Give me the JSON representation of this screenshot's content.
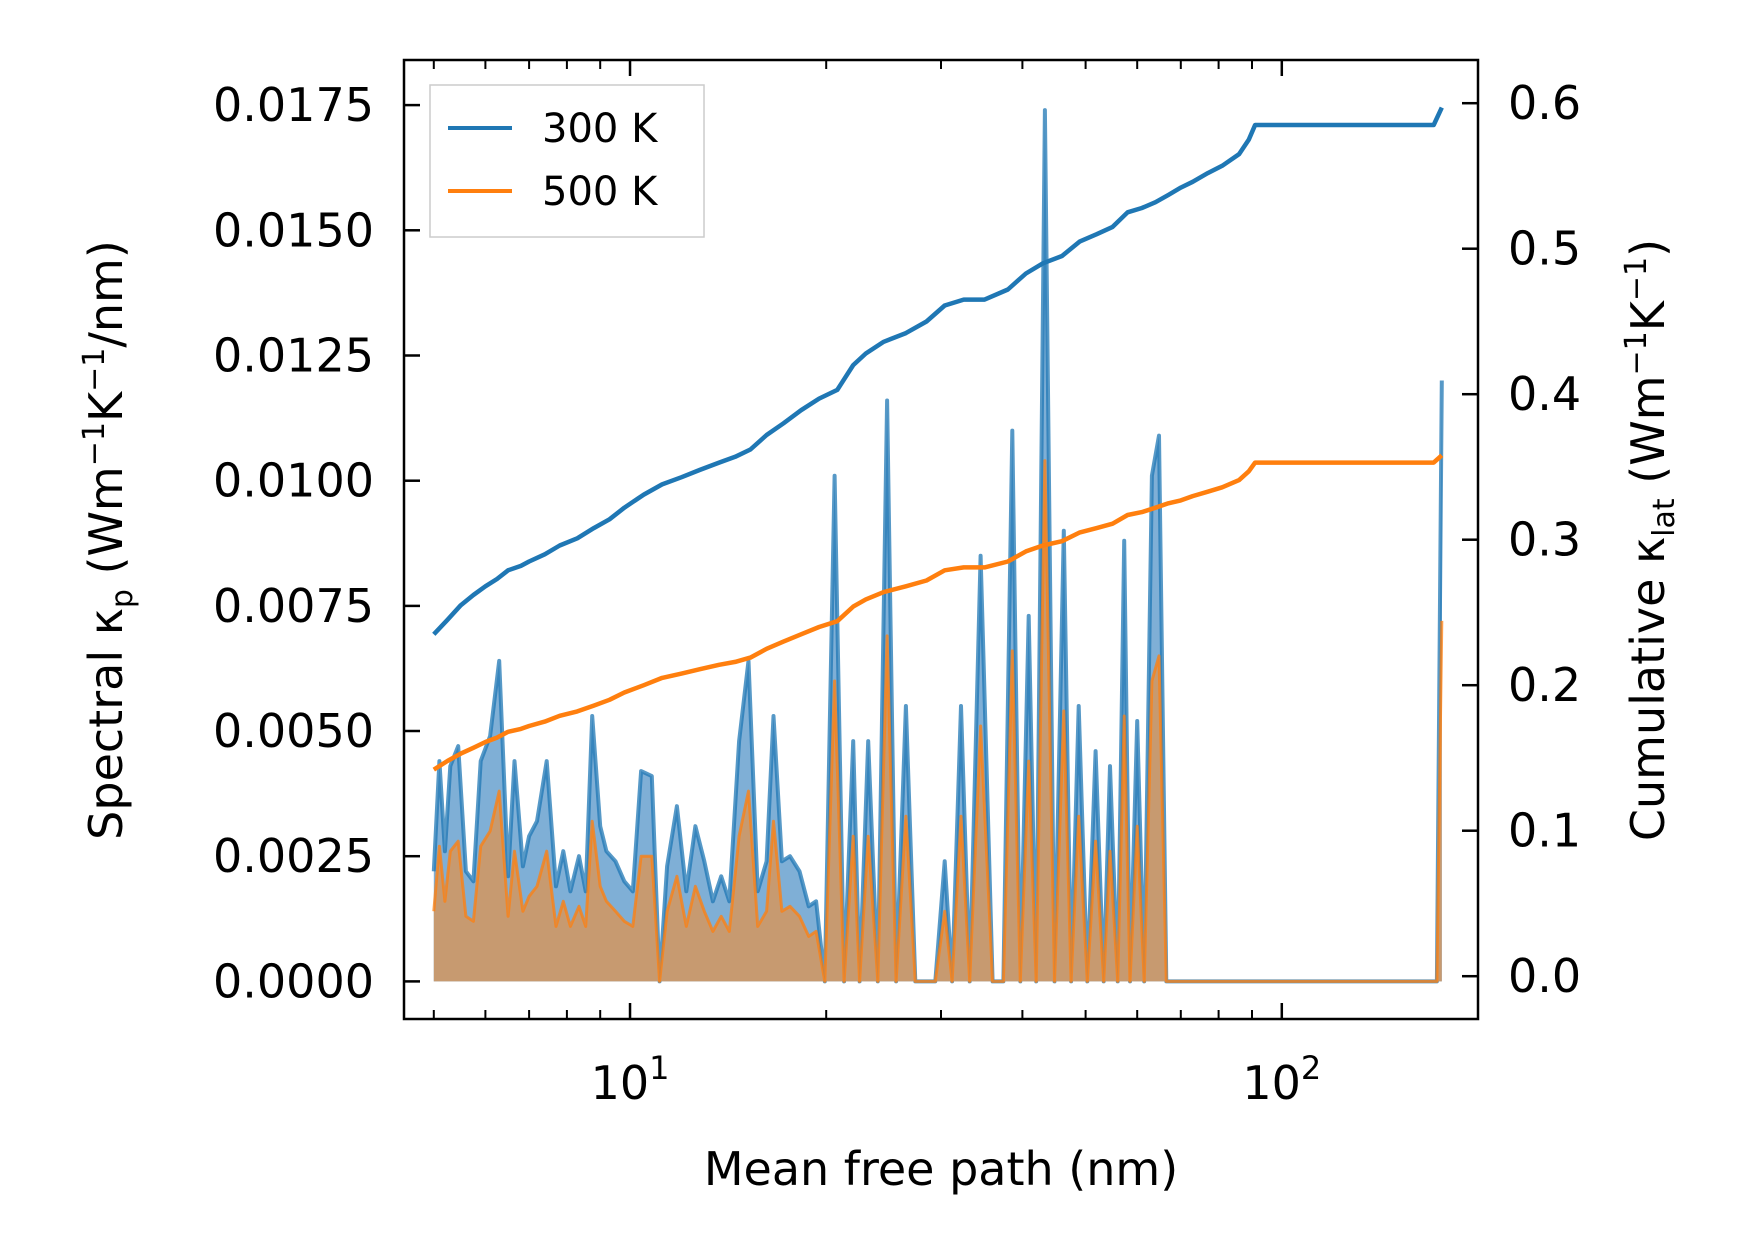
{
  "chart_data": {
    "type": "line",
    "xscale": "log",
    "xlabel": "Mean free path (nm)",
    "ylabel": {
      "main": "Spectral κ",
      "sub": "p",
      "unit": " (Wm",
      "e1": "−1",
      "k": "K",
      "e2": "−1",
      "tail": "/nm)"
    },
    "y2label": {
      "main": "Cumulative κ",
      "sub": "lat",
      "unit": " (Wm",
      "e1": "−1",
      "k": "K",
      "e2": "−1",
      "tail": ")"
    },
    "xlim": [
      4.5,
      200
    ],
    "ylim": [
      -0.00075,
      0.0184
    ],
    "y2lim": [
      -0.0294,
      0.6297
    ],
    "x_major_ticks": [
      {
        "value": 10,
        "base": "10",
        "exp": "1"
      },
      {
        "value": 100,
        "base": "10",
        "exp": "2"
      }
    ],
    "y_ticks": [
      "0.0000",
      "0.0025",
      "0.0050",
      "0.0075",
      "0.0100",
      "0.0125",
      "0.0150",
      "0.0175"
    ],
    "y2_ticks": [
      "0.0",
      "0.1",
      "0.2",
      "0.3",
      "0.4",
      "0.5",
      "0.6"
    ],
    "legend": {
      "position": "upper-left",
      "entries": [
        "300 K",
        "500 K"
      ]
    },
    "colors": {
      "300 K": "#1f77b4",
      "500 K": "#ff7f0e",
      "fill_300": "#7fafd6",
      "fill_500": "#c79a70"
    },
    "spectral_x": [
      5.0,
      5.1,
      5.2,
      5.3,
      5.45,
      5.6,
      5.75,
      5.9,
      6.1,
      6.3,
      6.5,
      6.65,
      6.85,
      7.0,
      7.2,
      7.45,
      7.7,
      7.9,
      8.1,
      8.35,
      8.55,
      8.75,
      9.0,
      9.2,
      9.5,
      9.8,
      10.1,
      10.4,
      10.8,
      11.1,
      11.4,
      11.8,
      12.2,
      12.6,
      13.0,
      13.4,
      13.8,
      14.2,
      14.7,
      15.2,
      15.7,
      16.2,
      16.6,
      17.1,
      17.6,
      18.2,
      18.8,
      19.3,
      19.9,
      20.6,
      21.3,
      22.0,
      22.5,
      23.2,
      24.0,
      24.8,
      25.6,
      26.5,
      27.4,
      28.3,
      29.4,
      30.4,
      31.2,
      32.2,
      33.2,
      34.5,
      36.0,
      37.4,
      38.6,
      39.7,
      40.9,
      42.0,
      43.3,
      44.8,
      46.3,
      47.5,
      48.8,
      50.3,
      51.8,
      53.3,
      54.5,
      56.0,
      57.3,
      58.5,
      60.0,
      61.5,
      63.2,
      64.8,
      66.5,
      68.4,
      70.3,
      72.0,
      74.0,
      76.0,
      78.0,
      80.2,
      82.2,
      84.5,
      86.5,
      88.5,
      90.5,
      92.5,
      95.0,
      100,
      120,
      150,
      170,
      173,
      176
    ],
    "spectral_300": [
      0.0022,
      0.0044,
      0.0026,
      0.0043,
      0.0047,
      0.0022,
      0.002,
      0.0044,
      0.0049,
      0.0064,
      0.0021,
      0.0044,
      0.0023,
      0.0029,
      0.0032,
      0.0044,
      0.0019,
      0.0026,
      0.0018,
      0.0025,
      0.0018,
      0.0053,
      0.0031,
      0.0026,
      0.0024,
      0.002,
      0.0018,
      0.0042,
      0.0041,
      0.0,
      0.0023,
      0.0035,
      0.0018,
      0.0031,
      0.0024,
      0.0016,
      0.0021,
      0.0016,
      0.0048,
      0.0064,
      0.0018,
      0.0024,
      0.0053,
      0.0024,
      0.0025,
      0.0022,
      0.0015,
      0.0016,
      0.0,
      0.0101,
      0.0,
      0.0048,
      0.0,
      0.0048,
      0.0,
      0.0116,
      0.0,
      0.0055,
      0.0,
      0.0,
      0.0,
      0.0024,
      0.0,
      0.0055,
      0.0,
      0.0085,
      0.0,
      0.0,
      0.011,
      0.0,
      0.0073,
      0.0,
      0.0174,
      0.0,
      0.009,
      0.0,
      0.0055,
      0.0,
      0.0046,
      0.0,
      0.0043,
      0.0,
      0.0088,
      0.0,
      0.0052,
      0.0,
      0.0101,
      0.0109,
      0.0,
      0.0,
      0.0,
      0.0,
      0.0,
      0.0,
      0.0,
      0.0,
      0.0,
      0.0,
      0.0,
      0.0,
      0.0,
      0.0,
      0.0,
      0.0,
      0.0,
      0.0,
      0.0,
      0.0,
      0.012
    ],
    "spectral_500": [
      0.0014,
      0.0027,
      0.0016,
      0.0026,
      0.0028,
      0.0013,
      0.0012,
      0.0027,
      0.003,
      0.0038,
      0.0013,
      0.0026,
      0.0014,
      0.0017,
      0.0019,
      0.0026,
      0.0011,
      0.0016,
      0.0011,
      0.0015,
      0.0011,
      0.0032,
      0.0019,
      0.0016,
      0.0014,
      0.0012,
      0.0011,
      0.0025,
      0.0025,
      0.0,
      0.0014,
      0.0021,
      0.0011,
      0.0019,
      0.0014,
      0.001,
      0.0013,
      0.001,
      0.0029,
      0.0038,
      0.0011,
      0.0014,
      0.0032,
      0.0014,
      0.0015,
      0.0013,
      0.0009,
      0.001,
      0.0,
      0.006,
      0.0,
      0.0029,
      0.0,
      0.0029,
      0.0,
      0.0069,
      0.0,
      0.0033,
      0.0,
      0.0,
      0.0,
      0.0014,
      0.0,
      0.0033,
      0.0,
      0.0051,
      0.0,
      0.0,
      0.0066,
      0.0,
      0.0044,
      0.0,
      0.0104,
      0.0,
      0.0054,
      0.0,
      0.0033,
      0.0,
      0.0028,
      0.0,
      0.0026,
      0.0,
      0.0053,
      0.0,
      0.0031,
      0.0,
      0.006,
      0.0065,
      0.0,
      0.0,
      0.0,
      0.0,
      0.0,
      0.0,
      0.0,
      0.0,
      0.0,
      0.0,
      0.0,
      0.0,
      0.0,
      0.0,
      0.0,
      0.0,
      0.0,
      0.0,
      0.0,
      0.0,
      0.0072
    ],
    "cumulative_x": [
      5.0,
      5.25,
      5.5,
      5.75,
      6.0,
      6.25,
      6.5,
      6.8,
      7.0,
      7.4,
      7.8,
      8.3,
      8.8,
      9.3,
      9.8,
      10.5,
      11.2,
      12.0,
      12.8,
      13.7,
      14.5,
      15.3,
      16.2,
      17.2,
      18.3,
      19.5,
      20.8,
      22.0,
      23.0,
      24.5,
      26.5,
      28.5,
      30.4,
      32.5,
      35.0,
      38.0,
      40.5,
      43.0,
      46.0,
      49.0,
      52.0,
      55.0,
      58.0,
      61.0,
      64.0,
      67.0,
      70.0,
      73.0,
      77.0,
      81.0,
      86.0,
      89.0,
      91.0,
      93.0,
      100,
      130,
      160,
      171,
      176
    ],
    "cumulative_300": [
      0.235,
      0.245,
      0.255,
      0.262,
      0.268,
      0.273,
      0.279,
      0.282,
      0.285,
      0.29,
      0.296,
      0.301,
      0.308,
      0.314,
      0.322,
      0.331,
      0.338,
      0.343,
      0.348,
      0.353,
      0.357,
      0.362,
      0.372,
      0.38,
      0.389,
      0.397,
      0.403,
      0.42,
      0.428,
      0.436,
      0.442,
      0.45,
      0.461,
      0.465,
      0.465,
      0.472,
      0.483,
      0.49,
      0.495,
      0.505,
      0.51,
      0.515,
      0.525,
      0.528,
      0.532,
      0.537,
      0.542,
      0.546,
      0.552,
      0.557,
      0.565,
      0.575,
      0.585,
      0.585,
      0.585,
      0.585,
      0.585,
      0.585,
      0.597
    ],
    "cumulative_500": [
      0.142,
      0.148,
      0.153,
      0.157,
      0.161,
      0.164,
      0.168,
      0.17,
      0.172,
      0.175,
      0.179,
      0.182,
      0.186,
      0.19,
      0.195,
      0.2,
      0.205,
      0.208,
      0.211,
      0.214,
      0.216,
      0.219,
      0.225,
      0.23,
      0.235,
      0.24,
      0.244,
      0.254,
      0.259,
      0.264,
      0.268,
      0.272,
      0.279,
      0.281,
      0.281,
      0.285,
      0.292,
      0.296,
      0.299,
      0.305,
      0.308,
      0.311,
      0.317,
      0.319,
      0.322,
      0.325,
      0.327,
      0.33,
      0.333,
      0.336,
      0.341,
      0.347,
      0.353,
      0.353,
      0.353,
      0.353,
      0.353,
      0.353,
      0.358
    ]
  }
}
